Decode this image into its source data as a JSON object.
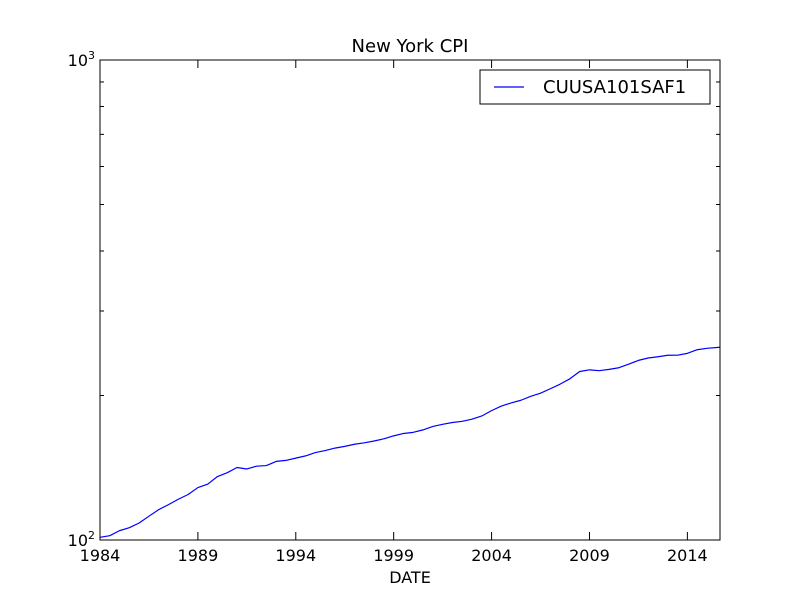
{
  "chart_data": {
    "type": "line",
    "title": "New York CPI",
    "xlabel": "DATE",
    "ylabel": "",
    "x_scale": "date",
    "y_scale": "log",
    "xlim": [
      "1984-01",
      "2015-09"
    ],
    "ylim": [
      100,
      1000
    ],
    "x_tick_labels": [
      "1984",
      "1989",
      "1994",
      "1999",
      "2004",
      "2009",
      "2014"
    ],
    "y_tick_labels": [
      {
        "value": 100,
        "base": "10",
        "exp": "2"
      },
      {
        "value": 1000,
        "base": "10",
        "exp": "3"
      }
    ],
    "grid": false,
    "legend_position": "top-right",
    "series": [
      {
        "name": "CUUSA101SAF1",
        "color": "#0000ff",
        "points": [
          [
            "1984-01",
            101.3
          ],
          [
            "1984-07",
            102.1
          ],
          [
            "1985-01",
            104.6
          ],
          [
            "1985-07",
            106.1
          ],
          [
            "1986-01",
            108.5
          ],
          [
            "1986-07",
            112.1
          ],
          [
            "1987-01",
            115.7
          ],
          [
            "1987-07",
            118.5
          ],
          [
            "1988-01",
            121.6
          ],
          [
            "1988-07",
            124.4
          ],
          [
            "1989-01",
            128.6
          ],
          [
            "1989-07",
            130.7
          ],
          [
            "1990-01",
            135.6
          ],
          [
            "1990-07",
            138.1
          ],
          [
            "1991-01",
            141.6
          ],
          [
            "1991-07",
            140.6
          ],
          [
            "1992-01",
            142.5
          ],
          [
            "1992-07",
            142.9
          ],
          [
            "1993-01",
            145.8
          ],
          [
            "1993-07",
            146.5
          ],
          [
            "1994-01",
            148.1
          ],
          [
            "1994-07",
            149.7
          ],
          [
            "1995-01",
            152.1
          ],
          [
            "1995-07",
            153.6
          ],
          [
            "1996-01",
            155.4
          ],
          [
            "1996-07",
            156.7
          ],
          [
            "1997-01",
            158.3
          ],
          [
            "1997-07",
            159.4
          ],
          [
            "1998-01",
            160.8
          ],
          [
            "1998-07",
            162.5
          ],
          [
            "1999-01",
            164.8
          ],
          [
            "1999-07",
            166.7
          ],
          [
            "2000-01",
            167.6
          ],
          [
            "2000-07",
            169.6
          ],
          [
            "2001-01",
            172.4
          ],
          [
            "2001-07",
            174.2
          ],
          [
            "2002-01",
            175.7
          ],
          [
            "2002-07",
            176.7
          ],
          [
            "2003-01",
            178.5
          ],
          [
            "2003-07",
            181.3
          ],
          [
            "2004-01",
            186.0
          ],
          [
            "2004-07",
            190.1
          ],
          [
            "2005-01",
            193.0
          ],
          [
            "2005-07",
            195.5
          ],
          [
            "2006-01",
            199.2
          ],
          [
            "2006-07",
            202.2
          ],
          [
            "2007-01",
            206.6
          ],
          [
            "2007-07",
            211.2
          ],
          [
            "2008-01",
            216.7
          ],
          [
            "2008-07",
            224.4
          ],
          [
            "2009-01",
            226.2
          ],
          [
            "2009-07",
            225.3
          ],
          [
            "2010-01",
            226.7
          ],
          [
            "2010-07",
            228.5
          ],
          [
            "2011-01",
            232.4
          ],
          [
            "2011-07",
            236.7
          ],
          [
            "2012-01",
            239.4
          ],
          [
            "2012-07",
            240.9
          ],
          [
            "2013-01",
            242.6
          ],
          [
            "2013-07",
            242.7
          ],
          [
            "2014-01",
            244.8
          ],
          [
            "2014-07",
            249.1
          ],
          [
            "2015-01",
            250.8
          ],
          [
            "2015-09",
            252.1
          ]
        ]
      }
    ]
  }
}
